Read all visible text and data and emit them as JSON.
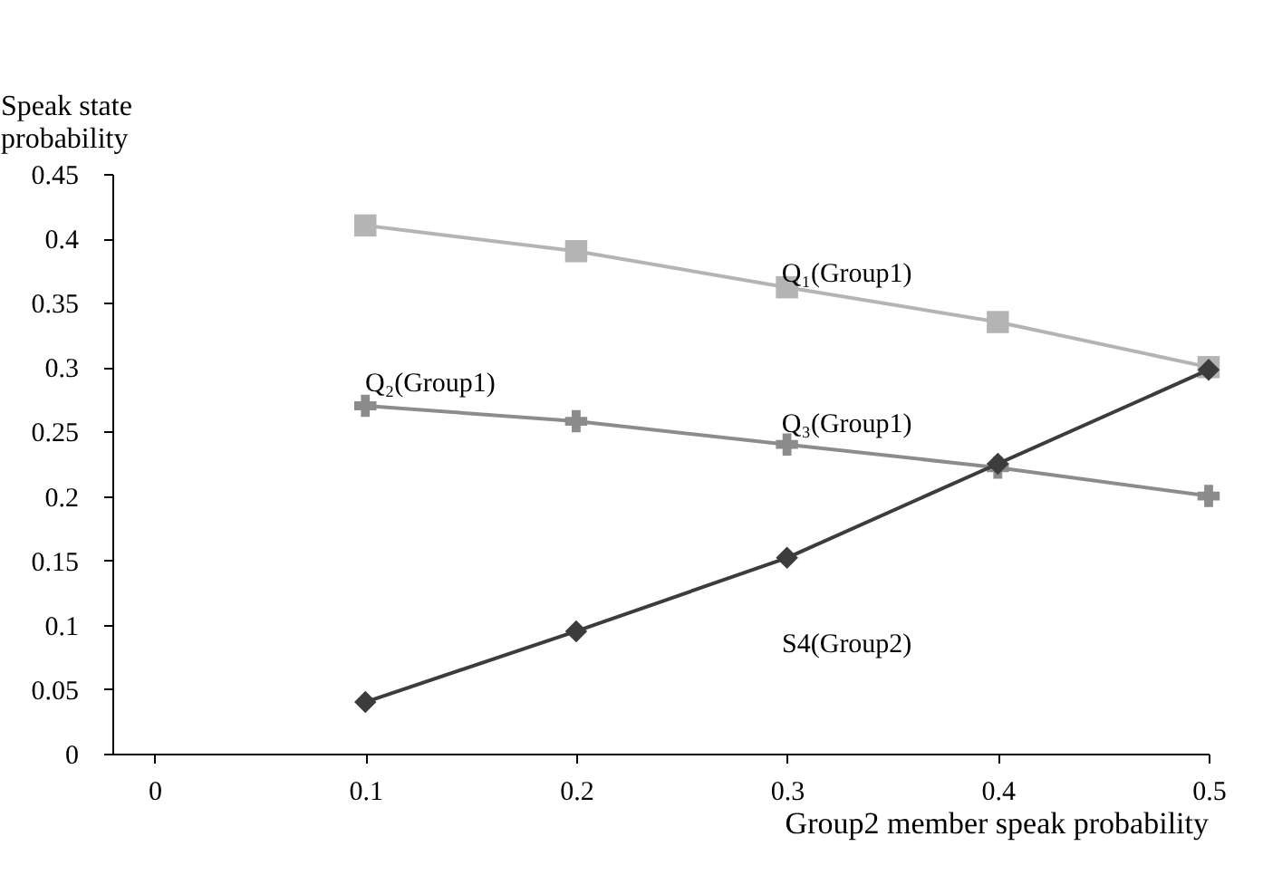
{
  "chart_data": {
    "type": "line",
    "xlabel": "Group2 member speak probability",
    "ylabel": "Speak state probability",
    "x": [
      0.1,
      0.2,
      0.3,
      0.4,
      0.5
    ],
    "series": [
      {
        "color": "#b4b4b4",
        "marker": "square",
        "values": [
          0.41,
          0.39,
          0.362,
          0.335,
          0.3
        ]
      },
      {
        "color": "#8c8c8c",
        "marker": "cross",
        "values": [
          0.27,
          0.258,
          0.24,
          0.222,
          0.2
        ]
      },
      {
        "color": "#3c3c3c",
        "marker": "diamond",
        "values": [
          0.04,
          0.095,
          0.152,
          0.225,
          0.298
        ]
      }
    ],
    "annotations": [
      "Q₁(Group1)",
      "Q₂(Group1)",
      "Q₃(Group1)",
      "S4(Group2)"
    ],
    "xlim": [
      -0.02,
      0.5
    ],
    "xticks": [
      0,
      0.1,
      0.2,
      0.3,
      0.4,
      0.5
    ],
    "ylim": [
      0,
      0.45
    ],
    "yticks": [
      0,
      0.05,
      0.1,
      0.15,
      0.2,
      0.25,
      0.3,
      0.35,
      0.4,
      0.45
    ],
    "grid": false
  }
}
